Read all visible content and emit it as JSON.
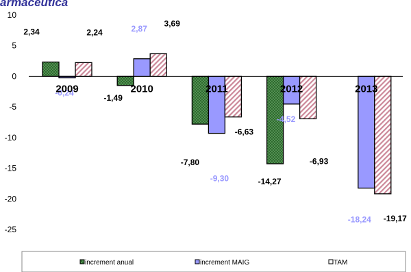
{
  "title_fragment": "armacèutica",
  "chart_data": {
    "type": "bar",
    "categories": [
      "2009",
      "2010",
      "2011",
      "2012",
      "2013"
    ],
    "series": [
      {
        "name": "increment anual",
        "values": [
          2.34,
          -1.49,
          -7.8,
          -14.27,
          null
        ],
        "labels": [
          "2,34",
          "-1,49",
          "-7,80",
          "-14,27",
          ""
        ],
        "color": "#2e6b2e"
      },
      {
        "name": "increment MAIG",
        "values": [
          -0.24,
          2.87,
          -9.3,
          -4.52,
          -18.24
        ],
        "labels": [
          "-0,24",
          "2,87",
          "-9,30",
          "-4,52",
          "-18,24"
        ],
        "color": "#9999ff"
      },
      {
        "name": "TAM",
        "values": [
          2.24,
          3.69,
          -6.63,
          -6.93,
          -19.17
        ],
        "labels": [
          "2,24",
          "3,69",
          "-6,63",
          "-6,93",
          "-19,17"
        ],
        "color": "#cc8899"
      }
    ],
    "y_ticks": [
      "10",
      "5",
      "0",
      "-5",
      "-10",
      "-15",
      "-20",
      "-25"
    ],
    "ylim": [
      -25,
      10
    ],
    "legend_position": "bottom"
  }
}
